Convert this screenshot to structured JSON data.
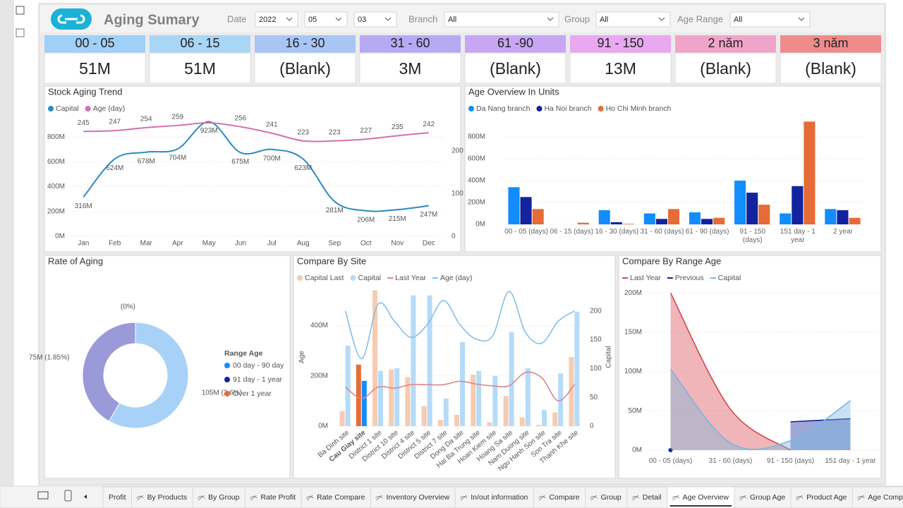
{
  "header": {
    "title": "Aging Sumary"
  },
  "filters": [
    {
      "label": "Date",
      "options": [
        "2022",
        "05",
        "03"
      ]
    },
    {
      "label": "Branch",
      "options": [
        "All"
      ]
    },
    {
      "label": "Group",
      "options": [
        "All"
      ]
    },
    {
      "label": "Age Range",
      "options": [
        "All"
      ]
    }
  ],
  "kpis": [
    {
      "label": "00 - 05",
      "value": "51M",
      "color": "#9fd0f7"
    },
    {
      "label": "06 - 15",
      "value": "51M",
      "color": "#a9d6f6"
    },
    {
      "label": "16 - 30",
      "value": "(Blank)",
      "color": "#a9c5f6"
    },
    {
      "label": "31 - 60",
      "value": "3M",
      "color": "#b7a9f4"
    },
    {
      "label": "61 -90",
      "value": "(Blank)",
      "color": "#c8a6f4"
    },
    {
      "label": "91 - 150",
      "value": "13M",
      "color": "#e8a9f1"
    },
    {
      "label": "2 năm",
      "value": "(Blank)",
      "color": "#f1a4c9"
    },
    {
      "label": "3 năm",
      "value": "(Blank)",
      "color": "#ef8b8b"
    }
  ],
  "chart_data": [
    {
      "type": "line",
      "title": "Stock Aging Trend",
      "categories": [
        "Jan",
        "Feb",
        "Mar",
        "Apr",
        "May",
        "Jun",
        "Jul",
        "Aug",
        "Sep",
        "Oct",
        "Nov",
        "Dec"
      ],
      "series": [
        {
          "name": "Capital",
          "color": "#2a8bc4",
          "values": [
            316,
            624,
            678,
            704,
            923,
            675,
            700,
            623,
            281,
            206,
            215,
            247
          ],
          "value_labels": [
            "316M",
            "624M",
            "678M",
            "704M",
            "923M",
            "675M",
            "700M",
            "623M",
            "281M",
            "206M",
            "215M",
            "247M"
          ]
        },
        {
          "name": "Age (day)",
          "color": "#d36fb5",
          "axis": "y2",
          "values": [
            245,
            247,
            254,
            259,
            265,
            256,
            241,
            223,
            223,
            227,
            235,
            242
          ],
          "value_labels": [
            "245",
            "247",
            "254",
            "259",
            null,
            "256",
            "241",
            "223",
            "223",
            "227",
            "235",
            "242"
          ]
        }
      ],
      "ylim": [
        0,
        1000
      ],
      "yticks": [
        {
          "value": 0,
          "label": "0M"
        },
        {
          "value": 200,
          "label": "200M"
        },
        {
          "value": 400,
          "label": "400M"
        },
        {
          "value": 600,
          "label": "600M"
        },
        {
          "value": 800,
          "label": "800M"
        }
      ],
      "y2lim": [
        0,
        290
      ],
      "y2ticks": [
        0,
        100,
        200
      ],
      "grid": true
    },
    {
      "type": "bar",
      "title": "Age Overview In Units",
      "categories": [
        "00 - 05 (days)",
        "06 - 15 (days)",
        "16 - 30 (days)",
        "31 - 60 (days)",
        "61 - 90 (days)",
        "91 - 150 (days)",
        "151 day - 1 year",
        "2 year"
      ],
      "series": [
        {
          "name": "Da Nang branch",
          "color": "#118dff",
          "values": [
            340,
            0,
            130,
            100,
            110,
            400,
            100,
            140
          ]
        },
        {
          "name": "Ha Noi branch",
          "color": "#12239e",
          "values": [
            250,
            0,
            20,
            50,
            50,
            290,
            350,
            130
          ]
        },
        {
          "name": "Ho Chi Minh branch",
          "color": "#e66c37",
          "values": [
            140,
            15,
            5,
            140,
            60,
            180,
            940,
            60
          ]
        }
      ],
      "ylim": [
        0,
        1000
      ],
      "yticks": [
        {
          "value": 0,
          "label": "0M"
        },
        {
          "value": 200,
          "label": "200M"
        },
        {
          "value": 400,
          "label": "400M"
        },
        {
          "value": 600,
          "label": "600M"
        },
        {
          "value": 800,
          "label": "800M"
        }
      ],
      "grid": true
    },
    {
      "type": "pie",
      "title": "Rate of Aging",
      "hole": true,
      "legend_title": "Range Age",
      "categories": [
        "00 day - 90 day",
        "91 day - 1 year",
        "Over 1 year"
      ],
      "values": [
        105,
        75,
        0
      ],
      "value_labels": [
        "105M (2.6%)",
        "75M (1.85%)",
        "(0%)"
      ],
      "colors": [
        "#a8d1f7",
        "#9a9ad8",
        "#f3c4a6"
      ],
      "legend_colors": [
        "#118dff",
        "#12239e",
        "#e66c37"
      ]
    },
    {
      "type": "combo",
      "title": "Compare By Site",
      "ytitle": "Age",
      "y2title": "Capital",
      "highlight_index": 1,
      "categories": [
        "Ba Dinh site",
        "Cau Giay site",
        "District 1 site",
        "District 10 site",
        "District 4 site",
        "District 5 site",
        "District 7 site",
        "Dong Da site",
        "Hai Ba Trung site",
        "Hoan Kiem site",
        "Hoang Sa site",
        "Nam Duong site",
        "Ngu Hanh Son site",
        "Son Tra site",
        "Thanh Khe site"
      ],
      "series": [
        {
          "name": "Capital Last",
          "kind": "bar",
          "color": "#f6cbb0",
          "highlight_color": "#e66c37",
          "values": [
            60,
            245,
            540,
            225,
            195,
            80,
            25,
            45,
            205,
            15,
            120,
            35,
            5,
            55,
            275
          ]
        },
        {
          "name": "Capital",
          "kind": "bar",
          "color": "#b5dbf8",
          "highlight_color": "#118dff",
          "values": [
            320,
            180,
            220,
            230,
            520,
            520,
            110,
            335,
            220,
            200,
            375,
            230,
            65,
            210,
            455
          ]
        },
        {
          "name": "Last Year",
          "kind": "line",
          "axis": "y2",
          "color": "#d9868d",
          "values": [
            68,
            48,
            68,
            66,
            72,
            72,
            72,
            78,
            73,
            70,
            70,
            93,
            84,
            44,
            72
          ]
        },
        {
          "name": "Age (day)",
          "kind": "line",
          "axis": "y2",
          "color": "#86bfe6",
          "values": [
            200,
            117,
            212,
            182,
            154,
            176,
            218,
            176,
            151,
            157,
            234,
            163,
            144,
            182,
            200
          ]
        }
      ],
      "ylim": [
        0,
        550
      ],
      "yticks": [
        {
          "value": 0,
          "label": "0M"
        },
        {
          "value": 200,
          "label": "200M"
        },
        {
          "value": 400,
          "label": "400M"
        }
      ],
      "y2lim": [
        0,
        240
      ],
      "y2ticks": [
        0,
        50,
        100,
        150,
        200
      ],
      "grid": true
    },
    {
      "type": "area",
      "title": "Compare By Range Age",
      "categories": [
        "00 - 05 (days)",
        "31 - 60 (days)",
        "91 - 150 (days)",
        "151 day - 1 year"
      ],
      "series": [
        {
          "name": "Last Year",
          "color": "#d64550",
          "values": [
            200,
            52,
            0,
            null
          ]
        },
        {
          "name": "Previous",
          "color": "#12239e",
          "values": [
            0,
            null,
            36,
            40
          ]
        },
        {
          "name": "Capital",
          "color": "#76b7e0",
          "values": [
            103,
            9,
            12,
            63
          ]
        }
      ],
      "ylim": [
        0,
        210
      ],
      "yticks": [
        {
          "value": 0,
          "label": "0M"
        },
        {
          "value": 50,
          "label": "50M"
        },
        {
          "value": 100,
          "label": "100M"
        },
        {
          "value": 150,
          "label": "150M"
        },
        {
          "value": 200,
          "label": "200M"
        }
      ],
      "grid": true
    }
  ],
  "tabs": {
    "items": [
      "Profit",
      "By Products",
      "By Group",
      "Rate Profit",
      "Rate Compare",
      "Inventory Overview",
      "In/out information",
      "Compare",
      "Group",
      "Detail",
      "Age Overview",
      "Group Age",
      "Product Age",
      "Age Compare"
    ],
    "active": 10
  }
}
